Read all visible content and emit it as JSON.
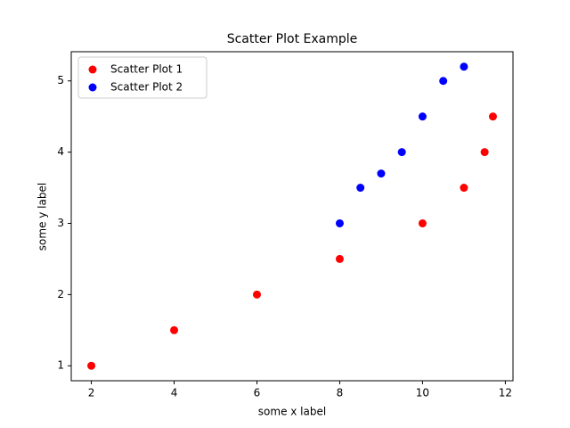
{
  "chart_data": {
    "type": "scatter",
    "title": "Scatter Plot Example",
    "x_label": "some x label",
    "y_label": "some y label",
    "series": [
      {
        "name": "Scatter Plot 1",
        "color": "#ff0000",
        "x": [
          2,
          4,
          6,
          8,
          10,
          11,
          11.5,
          11.7
        ],
        "values": [
          1,
          1.5,
          2,
          2.5,
          3,
          3.5,
          4,
          4.5
        ]
      },
      {
        "name": "Scatter Plot 2",
        "color": "#0000ff",
        "x": [
          8,
          8.5,
          9,
          9.5,
          10,
          10.5,
          11
        ],
        "values": [
          3,
          3.5,
          3.7,
          4,
          4.5,
          5,
          5.2
        ]
      }
    ],
    "xlim": [
      1.515,
      12.185
    ],
    "xticks": [
      2,
      4,
      6,
      8,
      10,
      12
    ],
    "ylim": [
      0.79,
      5.41
    ],
    "yticks": [
      1,
      2,
      3,
      4,
      5
    ],
    "legend": "upper-left",
    "grid": false
  }
}
